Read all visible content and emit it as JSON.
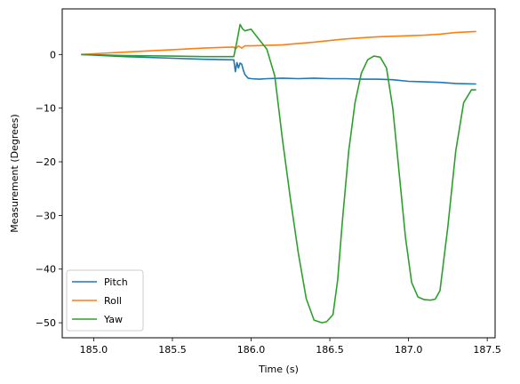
{
  "chart_data": {
    "type": "line",
    "title": "",
    "xlabel": "Time (s)",
    "ylabel": "Measurement (Degrees)",
    "xlim": [
      184.8,
      187.55
    ],
    "ylim": [
      -52.8,
      8.5
    ],
    "xticks": [
      185.0,
      185.5,
      186.0,
      186.5,
      187.0,
      187.5
    ],
    "xtick_labels": [
      "185.0",
      "185.5",
      "186.0",
      "186.5",
      "187.0",
      "187.5"
    ],
    "yticks": [
      0,
      -10,
      -20,
      -30,
      -40,
      -50
    ],
    "ytick_labels": [
      "0",
      "−10",
      "−20",
      "−30",
      "−40",
      "−50"
    ],
    "grid": false,
    "legend_position": "lower-left",
    "series": [
      {
        "name": "Pitch",
        "color": "#1f77b4",
        "x": [
          184.92,
          185.2,
          185.5,
          185.7,
          185.89,
          185.9,
          185.91,
          185.92,
          185.93,
          185.94,
          185.95,
          185.96,
          185.98,
          186.0,
          186.05,
          186.1,
          186.2,
          186.3,
          186.4,
          186.5,
          186.6,
          186.7,
          186.8,
          186.9,
          187.0,
          187.1,
          187.2,
          187.3,
          187.43
        ],
        "y": [
          0,
          -0.4,
          -0.7,
          -0.9,
          -1.0,
          -3.2,
          -1.5,
          -2.5,
          -1.6,
          -1.8,
          -2.9,
          -3.7,
          -4.4,
          -4.5,
          -4.6,
          -4.5,
          -4.4,
          -4.5,
          -4.4,
          -4.5,
          -4.5,
          -4.6,
          -4.6,
          -4.7,
          -5.0,
          -5.1,
          -5.2,
          -5.4,
          -5.5
        ]
      },
      {
        "name": "Roll",
        "color": "#ff7f0e",
        "x": [
          184.92,
          185.1,
          185.3,
          185.5,
          185.7,
          185.89,
          185.9,
          185.92,
          185.94,
          185.96,
          186.0,
          186.2,
          186.4,
          186.5,
          186.6,
          186.7,
          186.8,
          186.9,
          187.0,
          187.1,
          187.2,
          187.3,
          187.43
        ],
        "y": [
          0,
          0.3,
          0.6,
          0.9,
          1.2,
          1.4,
          1.0,
          1.6,
          1.2,
          1.6,
          1.6,
          1.8,
          2.3,
          2.6,
          2.9,
          3.1,
          3.3,
          3.4,
          3.5,
          3.6,
          3.8,
          4.1,
          4.3
        ]
      },
      {
        "name": "Yaw",
        "color": "#2ca02c",
        "x": [
          184.92,
          185.2,
          185.5,
          185.7,
          185.89,
          185.91,
          185.93,
          185.945,
          185.96,
          186.0,
          186.05,
          186.1,
          186.15,
          186.2,
          186.25,
          186.3,
          186.35,
          186.4,
          186.45,
          186.48,
          186.52,
          186.55,
          186.58,
          186.62,
          186.66,
          186.7,
          186.74,
          186.78,
          186.82,
          186.86,
          186.9,
          186.94,
          186.98,
          187.02,
          187.06,
          187.1,
          187.14,
          187.17,
          187.2,
          187.25,
          187.3,
          187.35,
          187.4,
          187.43
        ],
        "y": [
          0,
          -0.2,
          -0.3,
          -0.4,
          -0.4,
          2.5,
          5.6,
          4.8,
          4.4,
          4.7,
          2.8,
          1.0,
          -4.0,
          -16.0,
          -27.0,
          -37.0,
          -45.5,
          -49.5,
          -50.0,
          -49.8,
          -48.5,
          -42.0,
          -31.0,
          -18.0,
          -9.0,
          -3.5,
          -1.0,
          -0.3,
          -0.5,
          -2.5,
          -10.0,
          -22.0,
          -34.0,
          -42.5,
          -45.2,
          -45.7,
          -45.8,
          -45.6,
          -44.0,
          -32.0,
          -18.0,
          -9.0,
          -6.6,
          -6.6
        ]
      }
    ]
  }
}
